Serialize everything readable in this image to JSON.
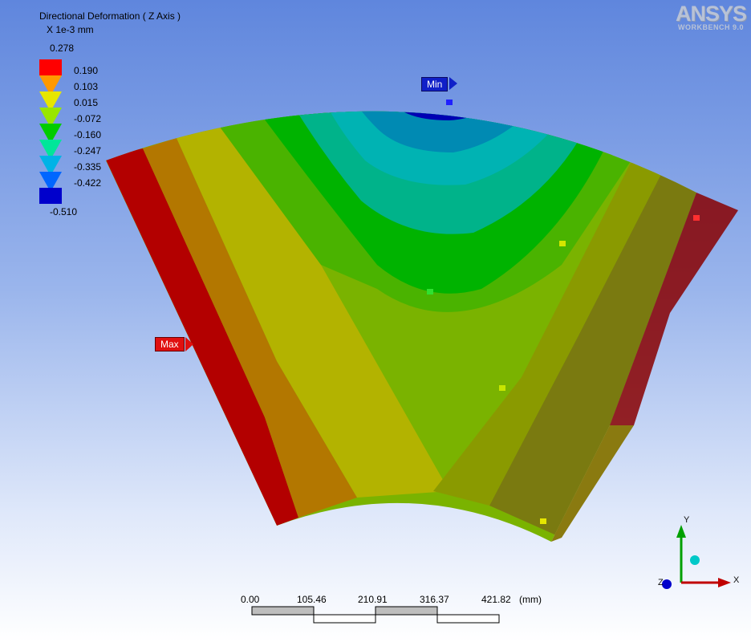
{
  "legend": {
    "title": "Directional Deformation ( Z Axis )",
    "unit": "X 1e-3 mm",
    "max_value": "0.278",
    "min_value": "-0.510",
    "levels": [
      "0.190",
      "0.103",
      "0.015",
      "-0.072",
      "-0.160",
      "-0.247",
      "-0.335",
      "-0.422"
    ],
    "colors": [
      "#ff0000",
      "#ff9900",
      "#e6e600",
      "#99e600",
      "#00cc00",
      "#00e699",
      "#00b3e6",
      "#0066ff",
      "#0000cc"
    ]
  },
  "logo": {
    "brand": "ANSYS",
    "product": "WORKBENCH 9.0"
  },
  "probes": {
    "min_label": "Min",
    "max_label": "Max"
  },
  "scale_bar": {
    "ticks": [
      "0.00",
      "105.46",
      "210.91",
      "316.37",
      "421.82"
    ],
    "unit": "(mm)"
  },
  "triad": {
    "x": "X",
    "y": "Y",
    "z": "Z"
  }
}
